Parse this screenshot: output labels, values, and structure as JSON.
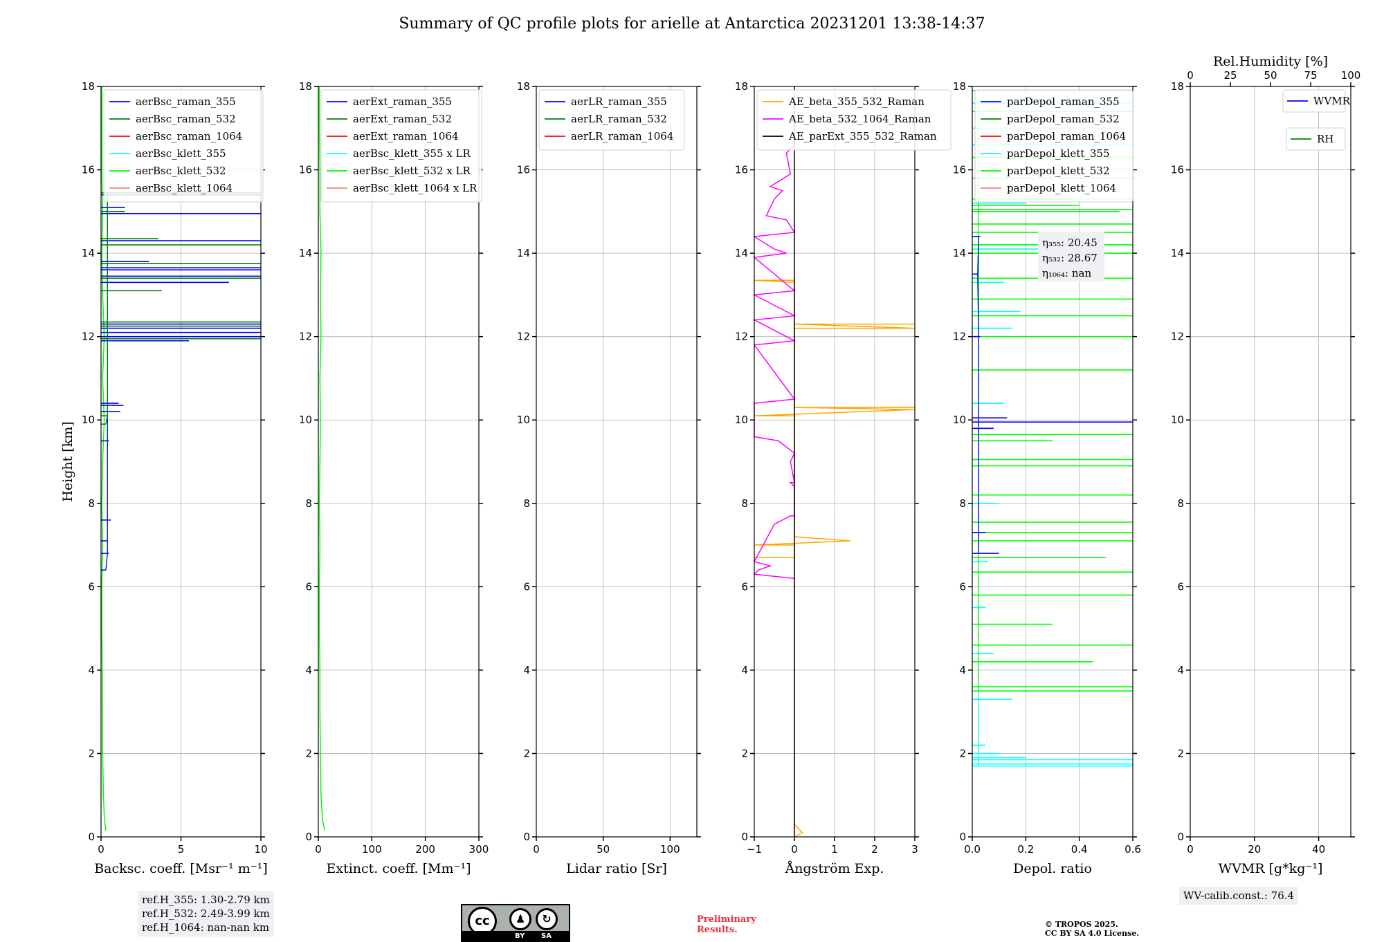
{
  "title": "Summary of QC profile plots for arielle at Antarctica 20231201 13:38-14:37",
  "colors": {
    "blue": "#0000ff",
    "green": "#008000",
    "red": "#ff0000",
    "cyan": "#00ffff",
    "lime": "#00ff00",
    "salmon": "#fa8072",
    "orange": "#ffa500",
    "magenta": "#ff00ff",
    "black": "#000000"
  },
  "chart_data": [
    {
      "type": "line",
      "id": "bsc",
      "xlabel": "Backsc. coeff. [Msr⁻¹ m⁻¹]",
      "ylabel": "Height [km]",
      "xlim": [
        0,
        10
      ],
      "ylim": [
        0,
        18
      ],
      "xticks": [
        0,
        5,
        10
      ],
      "yticks": [
        0,
        2,
        4,
        6,
        8,
        10,
        12,
        14,
        16,
        18
      ],
      "legend": [
        "aerBsc_raman_355",
        "aerBsc_raman_532",
        "aerBsc_raman_1064",
        "aerBsc_klett_355",
        "aerBsc_klett_532",
        "aerBsc_klett_1064"
      ],
      "legend_colors": [
        "blue",
        "green",
        "red",
        "cyan",
        "lime",
        "salmon"
      ],
      "series": [
        {
          "name": "aerBsc_klett_532",
          "color": "lime",
          "points": [
            [
              0.3,
              0.15
            ],
            [
              0.2,
              0.5
            ],
            [
              0.15,
              1
            ],
            [
              0.1,
              2
            ],
            [
              0.1,
              3
            ],
            [
              0.08,
              4
            ],
            [
              0.05,
              5
            ],
            [
              0.05,
              6
            ],
            [
              0.1,
              7
            ],
            [
              0.05,
              8
            ],
            [
              0.1,
              9
            ],
            [
              0.2,
              10
            ],
            [
              0.1,
              11
            ],
            [
              0.2,
              12
            ],
            [
              0.1,
              13
            ],
            [
              0.05,
              14
            ],
            [
              0.1,
              15
            ],
            [
              0.05,
              16
            ],
            [
              0.05,
              17
            ],
            [
              0.05,
              18
            ]
          ]
        },
        {
          "name": "aerBsc_raman_355",
          "color": "blue",
          "spikes": true,
          "points": [
            [
              0.3,
              6.4
            ],
            [
              0.5,
              6.8
            ],
            [
              0.4,
              7.1
            ],
            [
              0.6,
              7.6
            ],
            [
              1.2,
              10.2
            ],
            [
              1.4,
              10.35
            ],
            [
              1.1,
              10.4
            ],
            [
              0.5,
              9.5
            ],
            [
              5.5,
              11.9
            ],
            [
              10,
              12.0
            ],
            [
              10,
              12.1
            ],
            [
              10,
              12.2
            ],
            [
              10,
              12.3
            ],
            [
              8,
              13.3
            ],
            [
              10,
              13.45
            ],
            [
              10,
              13.6
            ],
            [
              10,
              13.65
            ],
            [
              3,
              13.8
            ],
            [
              10,
              14.3
            ],
            [
              10,
              14.95
            ],
            [
              10,
              15.4
            ],
            [
              1.5,
              15.1
            ]
          ]
        },
        {
          "name": "aerBsc_raman_532",
          "color": "green",
          "spikes": true,
          "points": [
            [
              0.3,
              9.9
            ],
            [
              0.4,
              10.1
            ],
            [
              10,
              11.95
            ],
            [
              10,
              12.25
            ],
            [
              10,
              12.35
            ],
            [
              3.8,
              13.1
            ],
            [
              10,
              13.4
            ],
            [
              10,
              13.75
            ],
            [
              10,
              14.2
            ],
            [
              3.6,
              14.35
            ],
            [
              1.5,
              15.0
            ],
            [
              10,
              15.45
            ]
          ]
        }
      ]
    },
    {
      "type": "line",
      "id": "ext",
      "xlabel": "Extinct. coeff. [Mm⁻¹]",
      "xlim": [
        0,
        300
      ],
      "ylim": [
        0,
        18
      ],
      "xticks": [
        0,
        100,
        200,
        300
      ],
      "yticks": [
        0,
        2,
        4,
        6,
        8,
        10,
        12,
        14,
        16,
        18
      ],
      "legend": [
        "aerExt_raman_355",
        "aerExt_raman_532",
        "aerExt_raman_1064",
        "aerBsc_klett_355 x LR",
        "aerBsc_klett_532 x LR",
        "aerBsc_klett_1064 x LR"
      ],
      "legend_colors": [
        "blue",
        "green",
        "red",
        "cyan",
        "lime",
        "salmon"
      ],
      "series": [
        {
          "name": "aerBsc_klett_532 x LR",
          "color": "lime",
          "points": [
            [
              12,
              0.15
            ],
            [
              8,
              0.4
            ],
            [
              5,
              1
            ],
            [
              4,
              2
            ],
            [
              3,
              3
            ],
            [
              3,
              4
            ],
            [
              2,
              5
            ],
            [
              2,
              6
            ],
            [
              3,
              7
            ],
            [
              2,
              8
            ],
            [
              3,
              9
            ],
            [
              4,
              10
            ],
            [
              3,
              11
            ],
            [
              5,
              12
            ],
            [
              4,
              13
            ],
            [
              5,
              14
            ],
            [
              3,
              15
            ],
            [
              3,
              16
            ],
            [
              2,
              17
            ],
            [
              2,
              18
            ]
          ]
        }
      ]
    },
    {
      "type": "line",
      "id": "lr",
      "xlabel": "Lidar ratio [Sr]",
      "xlim": [
        0,
        120
      ],
      "ylim": [
        0,
        18
      ],
      "xticks": [
        0,
        50,
        100
      ],
      "yticks": [
        0,
        2,
        4,
        6,
        8,
        10,
        12,
        14,
        16,
        18
      ],
      "legend": [
        "aerLR_raman_355",
        "aerLR_raman_532",
        "aerLR_raman_1064"
      ],
      "legend_colors": [
        "blue",
        "green",
        "red"
      ],
      "series": []
    },
    {
      "type": "line",
      "id": "ae",
      "xlabel": "Ångström Exp.",
      "xlim": [
        -1,
        3
      ],
      "ylim": [
        0,
        18
      ],
      "xticks": [
        -1,
        0,
        1,
        2,
        3
      ],
      "xticklabels": [
        "−1",
        "0",
        "1",
        "2",
        "3"
      ],
      "yticks": [
        0,
        2,
        4,
        6,
        8,
        10,
        12,
        14,
        16,
        18
      ],
      "legend": [
        "AE_beta_355_532_Raman",
        "AE_beta_532_1064_Raman",
        "AE_parExt_355_532_Raman"
      ],
      "legend_colors": [
        "orange",
        "magenta",
        "black"
      ],
      "series": [
        {
          "name": "AE_beta_355_532_Raman",
          "color": "orange",
          "points": [
            [
              0,
              0
            ],
            [
              0.2,
              0.1
            ],
            [
              0.1,
              0.2
            ],
            [
              0,
              0.3
            ],
            [
              0,
              6.7
            ],
            [
              -1,
              6.7
            ],
            [
              0,
              6.7
            ],
            [
              0,
              7.0
            ],
            [
              -1,
              7.0
            ],
            [
              1.4,
              7.1
            ],
            [
              0,
              7.2
            ],
            [
              0,
              10.1
            ],
            [
              -1,
              10.1
            ],
            [
              3,
              10.25
            ],
            [
              0,
              10.3
            ],
            [
              3,
              10.3
            ],
            [
              0,
              10.3
            ],
            [
              0,
              12.2
            ],
            [
              1.5,
              12.2
            ],
            [
              3,
              12.2
            ],
            [
              0,
              12.3
            ],
            [
              3,
              12.3
            ],
            [
              0,
              12.3
            ],
            [
              0,
              13.3
            ],
            [
              -1,
              13.35
            ],
            [
              0,
              13.35
            ]
          ]
        },
        {
          "name": "AE_beta_532_1064_Raman",
          "color": "magenta",
          "points": [
            [
              0,
              6.2
            ],
            [
              -1,
              6.3
            ],
            [
              -0.9,
              6.4
            ],
            [
              -0.6,
              6.5
            ],
            [
              -1,
              6.6
            ],
            [
              -0.5,
              7.5
            ],
            [
              -0.1,
              7.7
            ],
            [
              0,
              7.7
            ],
            [
              0,
              8.4
            ],
            [
              -0.1,
              8.5
            ],
            [
              0,
              8.5
            ],
            [
              -0.1,
              9.0
            ],
            [
              0,
              9.2
            ],
            [
              -0.4,
              9.5
            ],
            [
              -1,
              9.6
            ],
            [
              -1,
              10.4
            ],
            [
              0,
              10.5
            ],
            [
              -1,
              11.8
            ],
            [
              0,
              11.9
            ],
            [
              -1,
              12.4
            ],
            [
              0,
              12.5
            ],
            [
              -1,
              13.0
            ],
            [
              0,
              13.1
            ],
            [
              -1,
              13.9
            ],
            [
              -0.2,
              14.0
            ],
            [
              -0.5,
              14.1
            ],
            [
              -1,
              14.4
            ],
            [
              0,
              14.5
            ],
            [
              -0.2,
              14.8
            ],
            [
              -0.7,
              14.9
            ],
            [
              -0.5,
              15.3
            ],
            [
              -0.3,
              15.5
            ],
            [
              -0.6,
              15.6
            ],
            [
              -0.1,
              15.9
            ],
            [
              -0.2,
              16.4
            ],
            [
              0,
              16.6
            ]
          ]
        },
        {
          "name": "AE_parExt_355_532_Raman",
          "color": "black",
          "vline": 0
        }
      ]
    },
    {
      "type": "line",
      "id": "depol",
      "xlabel": "Depol. ratio",
      "xlim": [
        0,
        0.6
      ],
      "ylim": [
        0,
        18
      ],
      "xticks": [
        0,
        0.2,
        0.4,
        0.6
      ],
      "xticklabels": [
        "0.0",
        "0.2",
        "0.4",
        "0.6"
      ],
      "yticks": [
        0,
        2,
        4,
        6,
        8,
        10,
        12,
        14,
        16,
        18
      ],
      "legend": [
        "parDepol_raman_355",
        "parDepol_raman_532",
        "parDepol_raman_1064",
        "parDepol_klett_355",
        "parDepol_klett_532",
        "parDepol_klett_1064"
      ],
      "legend_colors": [
        "blue",
        "green",
        "red",
        "cyan",
        "lime",
        "salmon"
      ],
      "annotation": [
        "η₃₅₅: 20.45",
        "η₅₃₂: 28.67",
        "η₁₀₆₄: nan"
      ],
      "series": [
        {
          "name": "parDepol_klett_355",
          "color": "cyan",
          "spikes": true,
          "points": [
            [
              0.6,
              1.7
            ],
            [
              0.6,
              1.75
            ],
            [
              0.6,
              1.85
            ],
            [
              0.2,
              1.9
            ],
            [
              0.1,
              2.0
            ],
            [
              0.05,
              2.2
            ],
            [
              0.15,
              3.3
            ],
            [
              0.08,
              4.4
            ],
            [
              0.05,
              5.5
            ],
            [
              0.06,
              6.6
            ],
            [
              0.1,
              8.0
            ],
            [
              0.08,
              9.5
            ],
            [
              0.12,
              10.4
            ],
            [
              0.15,
              12.2
            ],
            [
              0.18,
              12.6
            ],
            [
              0.12,
              13.3
            ],
            [
              0.3,
              14.1
            ],
            [
              0.6,
              14.2
            ],
            [
              0.2,
              15.2
            ],
            [
              0.6,
              16.6
            ],
            [
              0.6,
              17.0
            ],
            [
              0.6,
              17.6
            ],
            [
              0.6,
              17.9
            ]
          ]
        },
        {
          "name": "parDepol_klett_532",
          "color": "lime",
          "spikes": true,
          "points": [
            [
              0.6,
              3.5
            ],
            [
              0.6,
              3.6
            ],
            [
              0.45,
              4.2
            ],
            [
              0.6,
              4.6
            ],
            [
              0.3,
              5.1
            ],
            [
              0.6,
              5.8
            ],
            [
              0.6,
              6.35
            ],
            [
              0.5,
              6.7
            ],
            [
              0.6,
              7.1
            ],
            [
              0.6,
              7.3
            ],
            [
              0.6,
              7.55
            ],
            [
              0.6,
              8.2
            ],
            [
              0.6,
              8.9
            ],
            [
              0.6,
              9.05
            ],
            [
              0.3,
              9.5
            ],
            [
              0.6,
              9.65
            ],
            [
              0.6,
              11.2
            ],
            [
              0.6,
              12.0
            ],
            [
              0.6,
              12.5
            ],
            [
              0.6,
              12.9
            ],
            [
              0.6,
              13.4
            ],
            [
              0.6,
              14.0
            ],
            [
              0.6,
              14.2
            ],
            [
              0.6,
              14.5
            ],
            [
              0.6,
              14.7
            ],
            [
              0.55,
              15.0
            ],
            [
              0.6,
              15.05
            ],
            [
              0.4,
              15.15
            ],
            [
              0.6,
              15.3
            ],
            [
              0.6,
              15.8
            ],
            [
              0.6,
              16.3
            ],
            [
              0.6,
              17.4
            ],
            [
              0.6,
              17.9
            ]
          ]
        },
        {
          "name": "parDepol_raman_355",
          "color": "blue",
          "spikes": true,
          "points": [
            [
              0.6,
              9.95
            ],
            [
              0.13,
              10.05
            ],
            [
              0.08,
              9.8
            ],
            [
              0.1,
              6.8
            ],
            [
              0.05,
              7.3
            ],
            [
              0.03,
              12.0
            ],
            [
              0.02,
              13.5
            ],
            [
              0.03,
              14.4
            ]
          ]
        }
      ]
    },
    {
      "type": "line",
      "id": "wv",
      "xlabel": "WVMR [g*kg⁻¹]",
      "xlabel_top": "Rel.Humidity [%]",
      "xlim": [
        0,
        50
      ],
      "ylim": [
        0,
        18
      ],
      "xticks": [
        0,
        20,
        40
      ],
      "xticks_top": [
        0,
        25,
        50,
        75,
        100
      ],
      "yticks": [
        0,
        2,
        4,
        6,
        8,
        10,
        12,
        14,
        16,
        18
      ],
      "legend": [
        "WVMR",
        "RH"
      ],
      "legend_colors": [
        "blue",
        "green"
      ],
      "series": []
    }
  ],
  "boxes": {
    "ref_h": [
      "ref.H_355: 1.30-2.79 km",
      "ref.H_532: 2.49-3.99 km",
      "ref.H_1064: nan-nan km"
    ],
    "wv_calib": "WV-calib.const.: 76.4"
  },
  "footer": {
    "preliminary": [
      "Preliminary",
      "Results."
    ],
    "copyright": [
      "© TROPOS 2025.",
      "CC BY SA 4.0 License."
    ],
    "license_badge": {
      "by": "BY",
      "sa": "SA",
      "cc": "cc"
    }
  }
}
